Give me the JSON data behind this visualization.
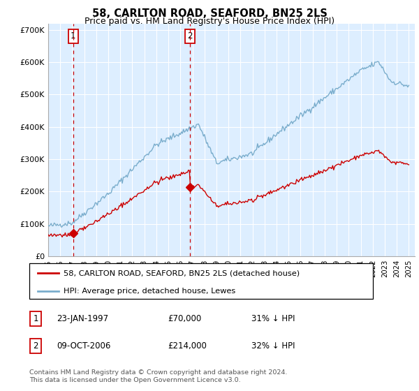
{
  "title": "58, CARLTON ROAD, SEAFORD, BN25 2LS",
  "subtitle": "Price paid vs. HM Land Registry's House Price Index (HPI)",
  "ylabel_ticks": [
    "£0",
    "£100K",
    "£200K",
    "£300K",
    "£400K",
    "£500K",
    "£600K",
    "£700K"
  ],
  "ytick_values": [
    0,
    100000,
    200000,
    300000,
    400000,
    500000,
    600000,
    700000
  ],
  "ylim": [
    0,
    720000
  ],
  "xlim_start": 1995.0,
  "xlim_end": 2025.5,
  "background_color": "#ddeeff",
  "red_line_color": "#cc0000",
  "blue_line_color": "#7aadcc",
  "sale1_x": 1997.07,
  "sale1_y": 70000,
  "sale2_x": 2006.78,
  "sale2_y": 214000,
  "legend_label_red": "58, CARLTON ROAD, SEAFORD, BN25 2LS (detached house)",
  "legend_label_blue": "HPI: Average price, detached house, Lewes",
  "footnote": "Contains HM Land Registry data © Crown copyright and database right 2024.\nThis data is licensed under the Open Government Licence v3.0.",
  "title_fontsize": 10.5,
  "subtitle_fontsize": 9.0
}
